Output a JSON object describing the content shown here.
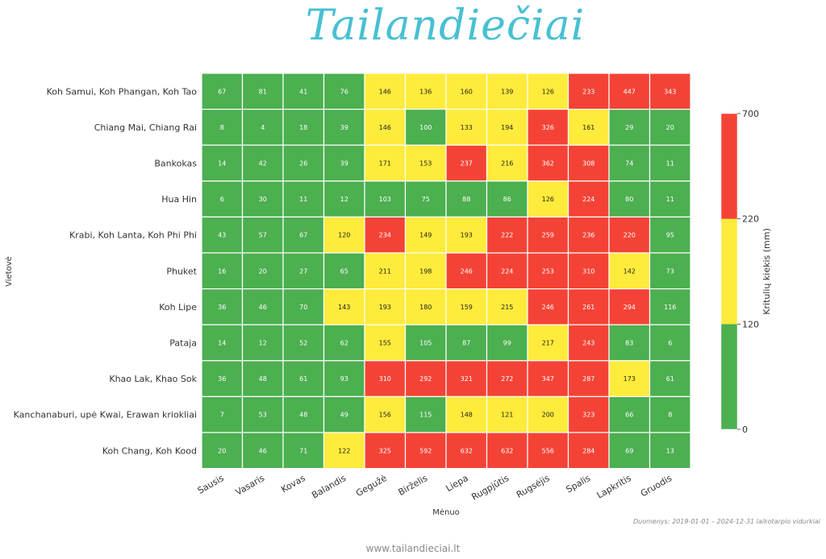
{
  "title": "Tailandiečiai",
  "footer": "www.tailandieciai.lt",
  "source_note": "Duomenys: 2019-01-01 – 2024-12-31 laikotarpio vidurkiai",
  "colors": {
    "low": "#4caf50",
    "mid": "#ffeb3b",
    "high": "#f44336",
    "title": "#48c0d2"
  },
  "chart_data": {
    "type": "heatmap",
    "xlabel": "Mėnuo",
    "ylabel": "Vietovė",
    "colorbar_label": "Kritulių kiekis (mm)",
    "colorbar_ticks": [
      0,
      120,
      220,
      700
    ],
    "color_bins": [
      {
        "from": 0,
        "to": 120,
        "color": "#4caf50"
      },
      {
        "from": 120,
        "to": 220,
        "color": "#ffeb3b"
      },
      {
        "from": 220,
        "to": 700,
        "color": "#f44336"
      }
    ],
    "columns": [
      "Sausis",
      "Vasaris",
      "Kovas",
      "Balandis",
      "Gegužė",
      "Birželis",
      "Liepa",
      "Rugpjūtis",
      "Rugsėjis",
      "Spalis",
      "Lapkritis",
      "Gruodis"
    ],
    "rows": [
      {
        "name": "Koh Samui, Koh Phangan, Koh Tao",
        "values": [
          67,
          81,
          41,
          76,
          146,
          136,
          160,
          139,
          126,
          233,
          447,
          343
        ]
      },
      {
        "name": "Chiang Mai, Chiang Rai",
        "values": [
          8,
          4,
          18,
          39,
          146,
          100,
          133,
          194,
          326,
          161,
          29,
          20
        ]
      },
      {
        "name": "Bankokas",
        "values": [
          14,
          42,
          26,
          39,
          171,
          153,
          237,
          216,
          362,
          308,
          74,
          11
        ]
      },
      {
        "name": "Hua Hin",
        "values": [
          6,
          30,
          11,
          12,
          103,
          75,
          88,
          86,
          126,
          224,
          80,
          11
        ]
      },
      {
        "name": "Krabi, Koh Lanta, Koh Phi Phi",
        "values": [
          43,
          57,
          67,
          120,
          234,
          149,
          193,
          222,
          259,
          236,
          220,
          95
        ]
      },
      {
        "name": "Phuket",
        "values": [
          16,
          20,
          27,
          65,
          211,
          198,
          246,
          224,
          253,
          310,
          142,
          73
        ]
      },
      {
        "name": "Koh Lipe",
        "values": [
          36,
          46,
          70,
          143,
          193,
          180,
          159,
          215,
          246,
          261,
          294,
          116
        ]
      },
      {
        "name": "Pataja",
        "values": [
          14,
          12,
          52,
          62,
          155,
          105,
          87,
          99,
          217,
          243,
          83,
          6
        ]
      },
      {
        "name": "Khao Lak, Khao Sok",
        "values": [
          36,
          48,
          61,
          93,
          310,
          292,
          321,
          272,
          347,
          287,
          173,
          61
        ]
      },
      {
        "name": "Kanchanaburi, upė Kwai, Erawan kriokliai",
        "values": [
          7,
          53,
          48,
          49,
          156,
          115,
          148,
          121,
          200,
          323,
          66,
          8
        ]
      },
      {
        "name": "Koh Chang, Koh Kood",
        "values": [
          20,
          46,
          71,
          122,
          325,
          592,
          632,
          632,
          556,
          284,
          69,
          13
        ]
      }
    ]
  }
}
